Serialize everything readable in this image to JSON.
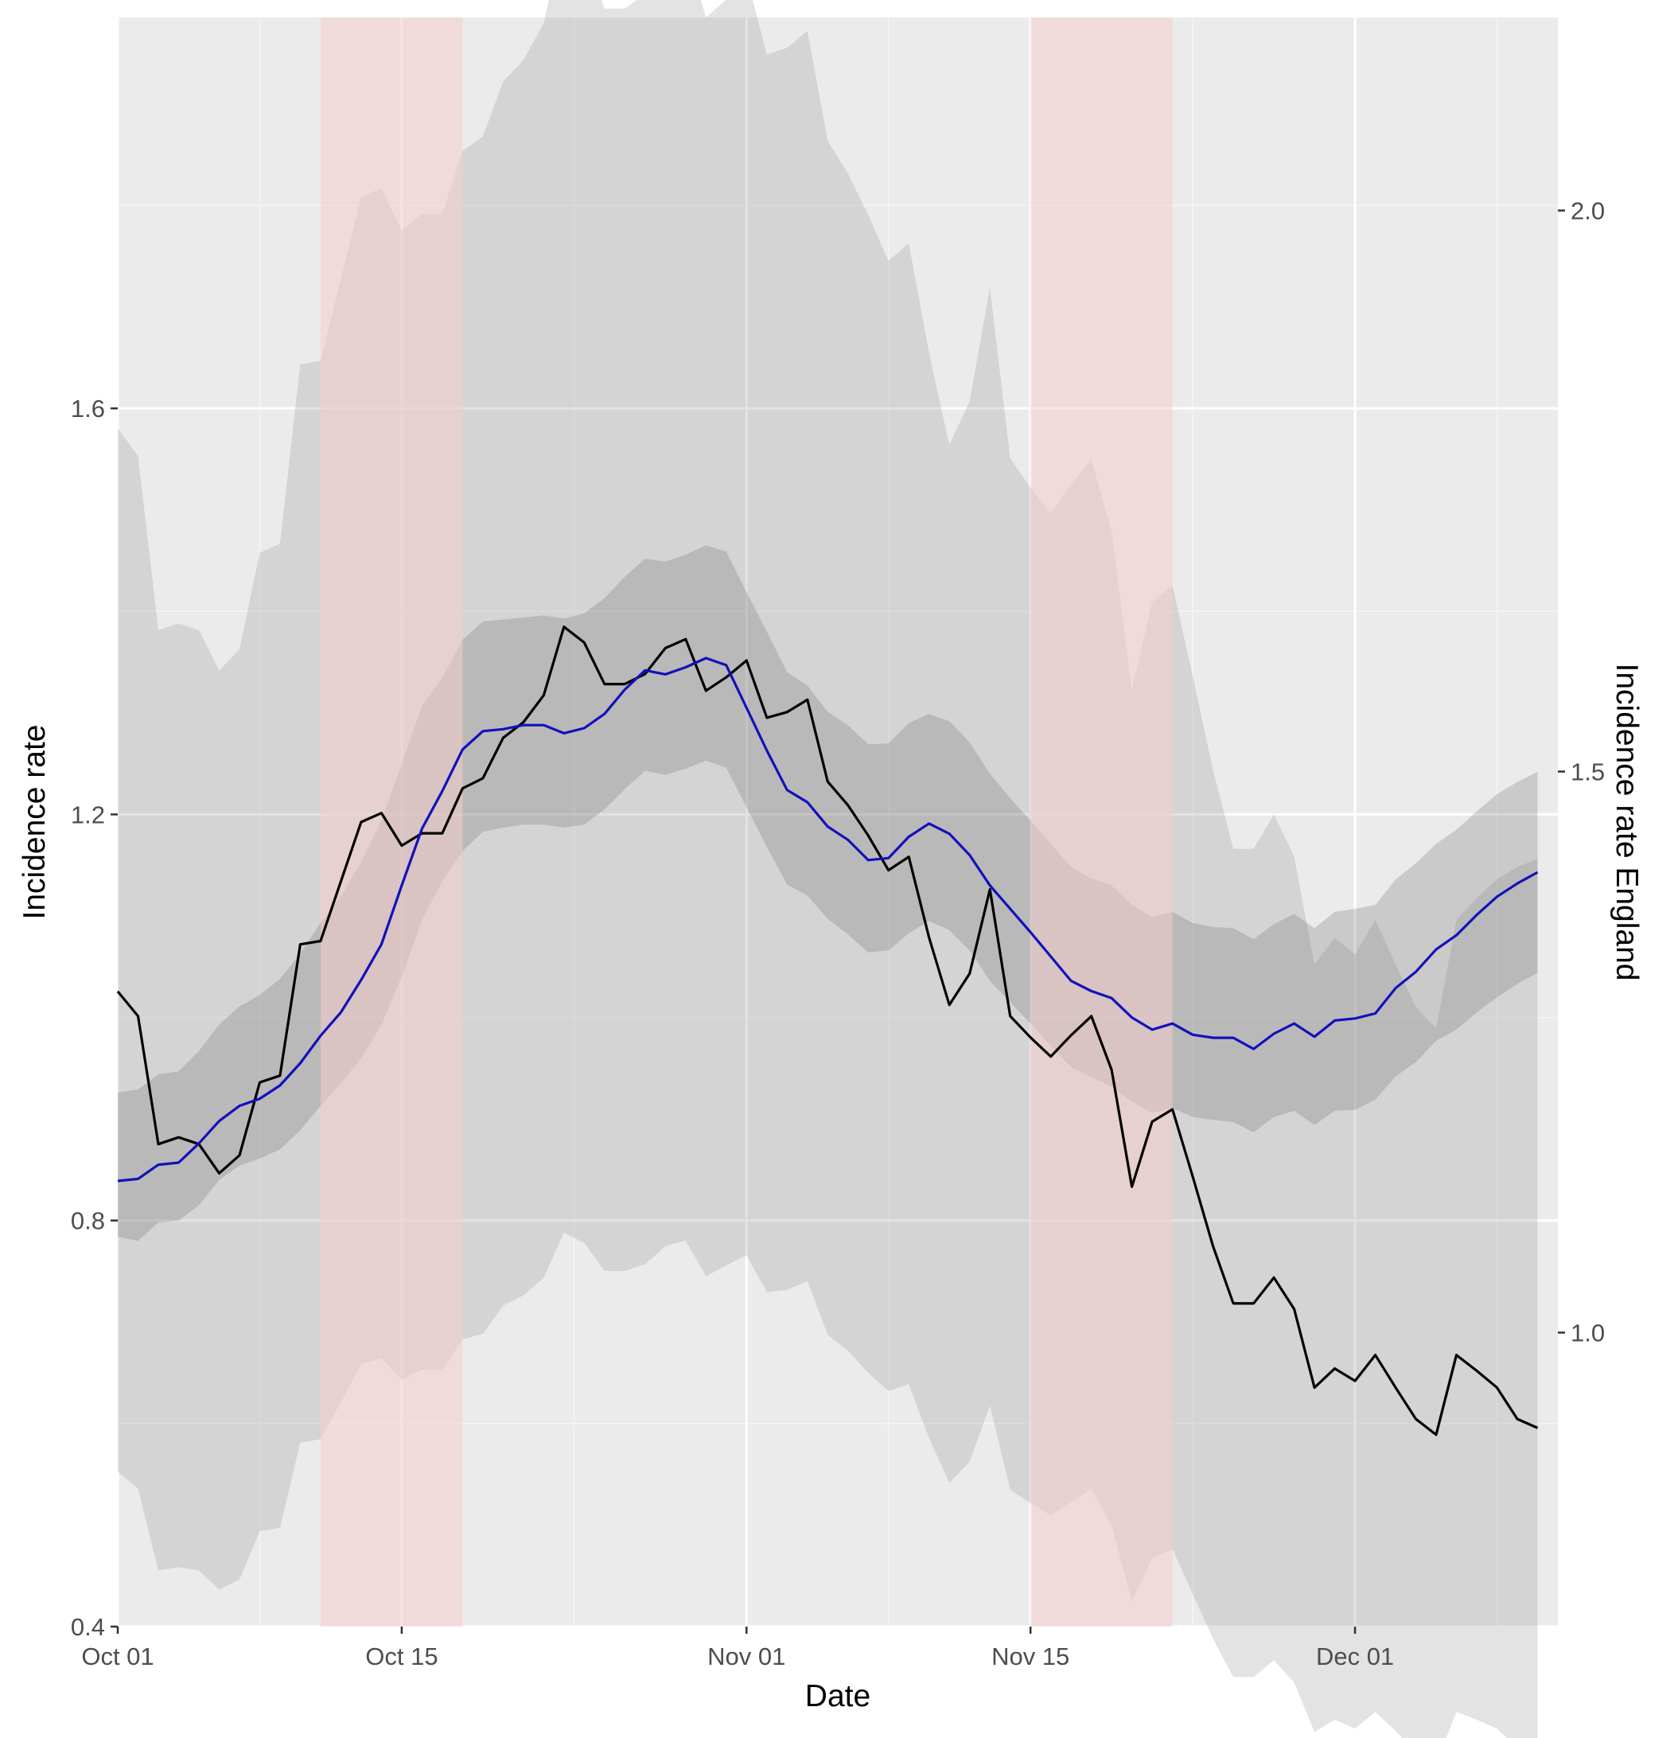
{
  "chart_data": {
    "type": "line",
    "xlabel": "Date",
    "ylabel": "Incidence rate",
    "y2label": "Incidence rate England",
    "x_range": [
      "2020-10-01",
      "2020-12-11"
    ],
    "ylim": [
      0.4,
      1.985
    ],
    "y2lim": [
      0.738,
      2.172
    ],
    "x_ticks": [
      {
        "date": "2020-10-01",
        "label": "Oct 01"
      },
      {
        "date": "2020-10-15",
        "label": "Oct 15"
      },
      {
        "date": "2020-11-01",
        "label": "Nov 01"
      },
      {
        "date": "2020-11-15",
        "label": "Nov 15"
      },
      {
        "date": "2020-12-01",
        "label": "Dec 01"
      }
    ],
    "y_ticks": [
      {
        "value": 0.4,
        "label": "0.4"
      },
      {
        "value": 0.8,
        "label": "0.8"
      },
      {
        "value": 1.2,
        "label": "1.2"
      },
      {
        "value": 1.6,
        "label": "1.6"
      }
    ],
    "y2_ticks": [
      {
        "value": 1.0,
        "label": "1.0"
      },
      {
        "value": 1.5,
        "label": "1.5"
      },
      {
        "value": 2.0,
        "label": "2.0"
      }
    ],
    "grid": true,
    "shaded_periods": [
      {
        "start": "2020-10-11",
        "end": "2020-10-18",
        "color": "#f4cccc"
      },
      {
        "start": "2020-11-15",
        "end": "2020-11-22",
        "color": "#f4cccc"
      }
    ],
    "series": [
      {
        "axis": "right",
        "color": "#000000",
        "start": "2020-10-01",
        "values": [
          1.304,
          1.282,
          1.168,
          1.174,
          1.168,
          1.142,
          1.158,
          1.223,
          1.229,
          1.346,
          1.349,
          1.402,
          1.455,
          1.463,
          1.434,
          1.445,
          1.445,
          1.485,
          1.494,
          1.53,
          1.544,
          1.568,
          1.629,
          1.615,
          1.578,
          1.578,
          1.587,
          1.61,
          1.618,
          1.572,
          1.584,
          1.599,
          1.548,
          1.553,
          1.564,
          1.491,
          1.47,
          1.443,
          1.412,
          1.424,
          1.352,
          1.292,
          1.32,
          1.395,
          1.282,
          1.263,
          1.246,
          1.265,
          1.282,
          1.234,
          1.13,
          1.188,
          1.199,
          1.139,
          1.077,
          1.026,
          1.026,
          1.049,
          1.021,
          0.951,
          0.968,
          0.957,
          0.98,
          0.951,
          0.923,
          0.909,
          0.98,
          0.966,
          0.951,
          0.923,
          0.915
        ]
      },
      {
        "axis": "left",
        "color": "#1111bb",
        "start": "2020-10-01",
        "values": [
          0.839,
          0.841,
          0.855,
          0.857,
          0.876,
          0.898,
          0.913,
          0.92,
          0.933,
          0.955,
          0.982,
          1.005,
          1.037,
          1.072,
          1.13,
          1.186,
          1.223,
          1.264,
          1.282,
          1.284,
          1.288,
          1.288,
          1.28,
          1.285,
          1.299,
          1.323,
          1.342,
          1.338,
          1.345,
          1.354,
          1.347,
          1.305,
          1.263,
          1.224,
          1.212,
          1.188,
          1.175,
          1.155,
          1.157,
          1.178,
          1.191,
          1.181,
          1.16,
          1.13,
          1.107,
          1.084,
          1.06,
          1.036,
          1.026,
          1.019,
          1.0,
          0.988,
          0.994,
          0.983,
          0.98,
          0.98,
          0.969,
          0.984,
          0.994,
          0.981,
          0.997,
          0.999,
          1.004,
          1.029,
          1.045,
          1.067,
          1.081,
          1.101,
          1.119,
          1.132,
          1.143
        ]
      }
    ],
    "band_inner_left": {
      "start": "2020-10-01",
      "upper": [
        0.926,
        0.929,
        0.944,
        0.947,
        0.967,
        0.993,
        1.011,
        1.022,
        1.038,
        1.063,
        1.093,
        1.119,
        1.153,
        1.194,
        1.25,
        1.307,
        1.335,
        1.372,
        1.39,
        1.392,
        1.394,
        1.396,
        1.393,
        1.398,
        1.413,
        1.434,
        1.452,
        1.449,
        1.456,
        1.465,
        1.459,
        1.419,
        1.38,
        1.34,
        1.327,
        1.301,
        1.288,
        1.269,
        1.27,
        1.29,
        1.299,
        1.292,
        1.271,
        1.24,
        1.216,
        1.194,
        1.171,
        1.148,
        1.137,
        1.13,
        1.111,
        1.099,
        1.104,
        1.093,
        1.089,
        1.088,
        1.077,
        1.092,
        1.102,
        1.088,
        1.104,
        1.107,
        1.111,
        1.136,
        1.152,
        1.171,
        1.185,
        1.203,
        1.22,
        1.232,
        1.242
      ],
      "lower": [
        0.784,
        0.78,
        0.798,
        0.8,
        0.815,
        0.84,
        0.854,
        0.861,
        0.87,
        0.889,
        0.913,
        0.935,
        0.96,
        0.993,
        1.04,
        1.096,
        1.134,
        1.164,
        1.183,
        1.187,
        1.19,
        1.19,
        1.187,
        1.19,
        1.205,
        1.225,
        1.243,
        1.239,
        1.245,
        1.253,
        1.246,
        1.207,
        1.168,
        1.131,
        1.12,
        1.097,
        1.082,
        1.064,
        1.066,
        1.083,
        1.095,
        1.086,
        1.066,
        1.036,
        1.015,
        0.994,
        0.972,
        0.951,
        0.941,
        0.932,
        0.917,
        0.906,
        0.911,
        0.902,
        0.899,
        0.897,
        0.887,
        0.902,
        0.908,
        0.894,
        0.908,
        0.909,
        0.919,
        0.942,
        0.956,
        0.977,
        0.988,
        1.005,
        1.02,
        1.033,
        1.044
      ]
    },
    "band_outer_right": {
      "start": "2020-10-01",
      "upper": [
        1.806,
        1.781,
        1.626,
        1.632,
        1.626,
        1.59,
        1.609,
        1.695,
        1.703,
        1.863,
        1.866,
        1.939,
        2.012,
        2.02,
        1.982,
        1.997,
        1.997,
        2.053,
        2.066,
        2.115,
        2.134,
        2.167,
        2.25,
        2.231,
        2.18,
        2.18,
        2.193,
        2.223,
        2.235,
        2.172,
        2.188,
        2.208,
        2.139,
        2.145,
        2.16,
        2.062,
        2.033,
        1.996,
        1.955,
        1.971,
        1.873,
        1.791,
        1.83,
        1.931,
        1.779,
        1.753,
        1.73,
        1.756,
        1.778,
        1.714,
        1.572,
        1.651,
        1.666,
        1.585,
        1.501,
        1.431,
        1.431,
        1.462,
        1.424,
        1.328,
        1.352,
        1.337,
        1.368,
        1.328,
        1.29,
        1.271,
        1.368,
        1.387,
        1.404,
        1.415,
        1.422
      ],
      "lower": [
        0.876,
        0.861,
        0.788,
        0.791,
        0.788,
        0.771,
        0.78,
        0.823,
        0.826,
        0.902,
        0.905,
        0.938,
        0.972,
        0.977,
        0.958,
        0.967,
        0.967,
        0.994,
        0.999,
        1.024,
        1.033,
        1.049,
        1.089,
        1.08,
        1.055,
        1.055,
        1.061,
        1.077,
        1.082,
        1.05,
        1.06,
        1.069,
        1.036,
        1.038,
        1.046,
        0.998,
        0.984,
        0.964,
        0.948,
        0.954,
        0.906,
        0.866,
        0.885,
        0.935,
        0.86,
        0.848,
        0.837,
        0.849,
        0.861,
        0.828,
        0.761,
        0.799,
        0.807,
        0.767,
        0.727,
        0.693,
        0.693,
        0.708,
        0.688,
        0.644,
        0.655,
        0.647,
        0.662,
        0.645,
        0.625,
        0.616,
        0.662,
        0.655,
        0.647,
        0.63,
        0.626
      ]
    }
  }
}
